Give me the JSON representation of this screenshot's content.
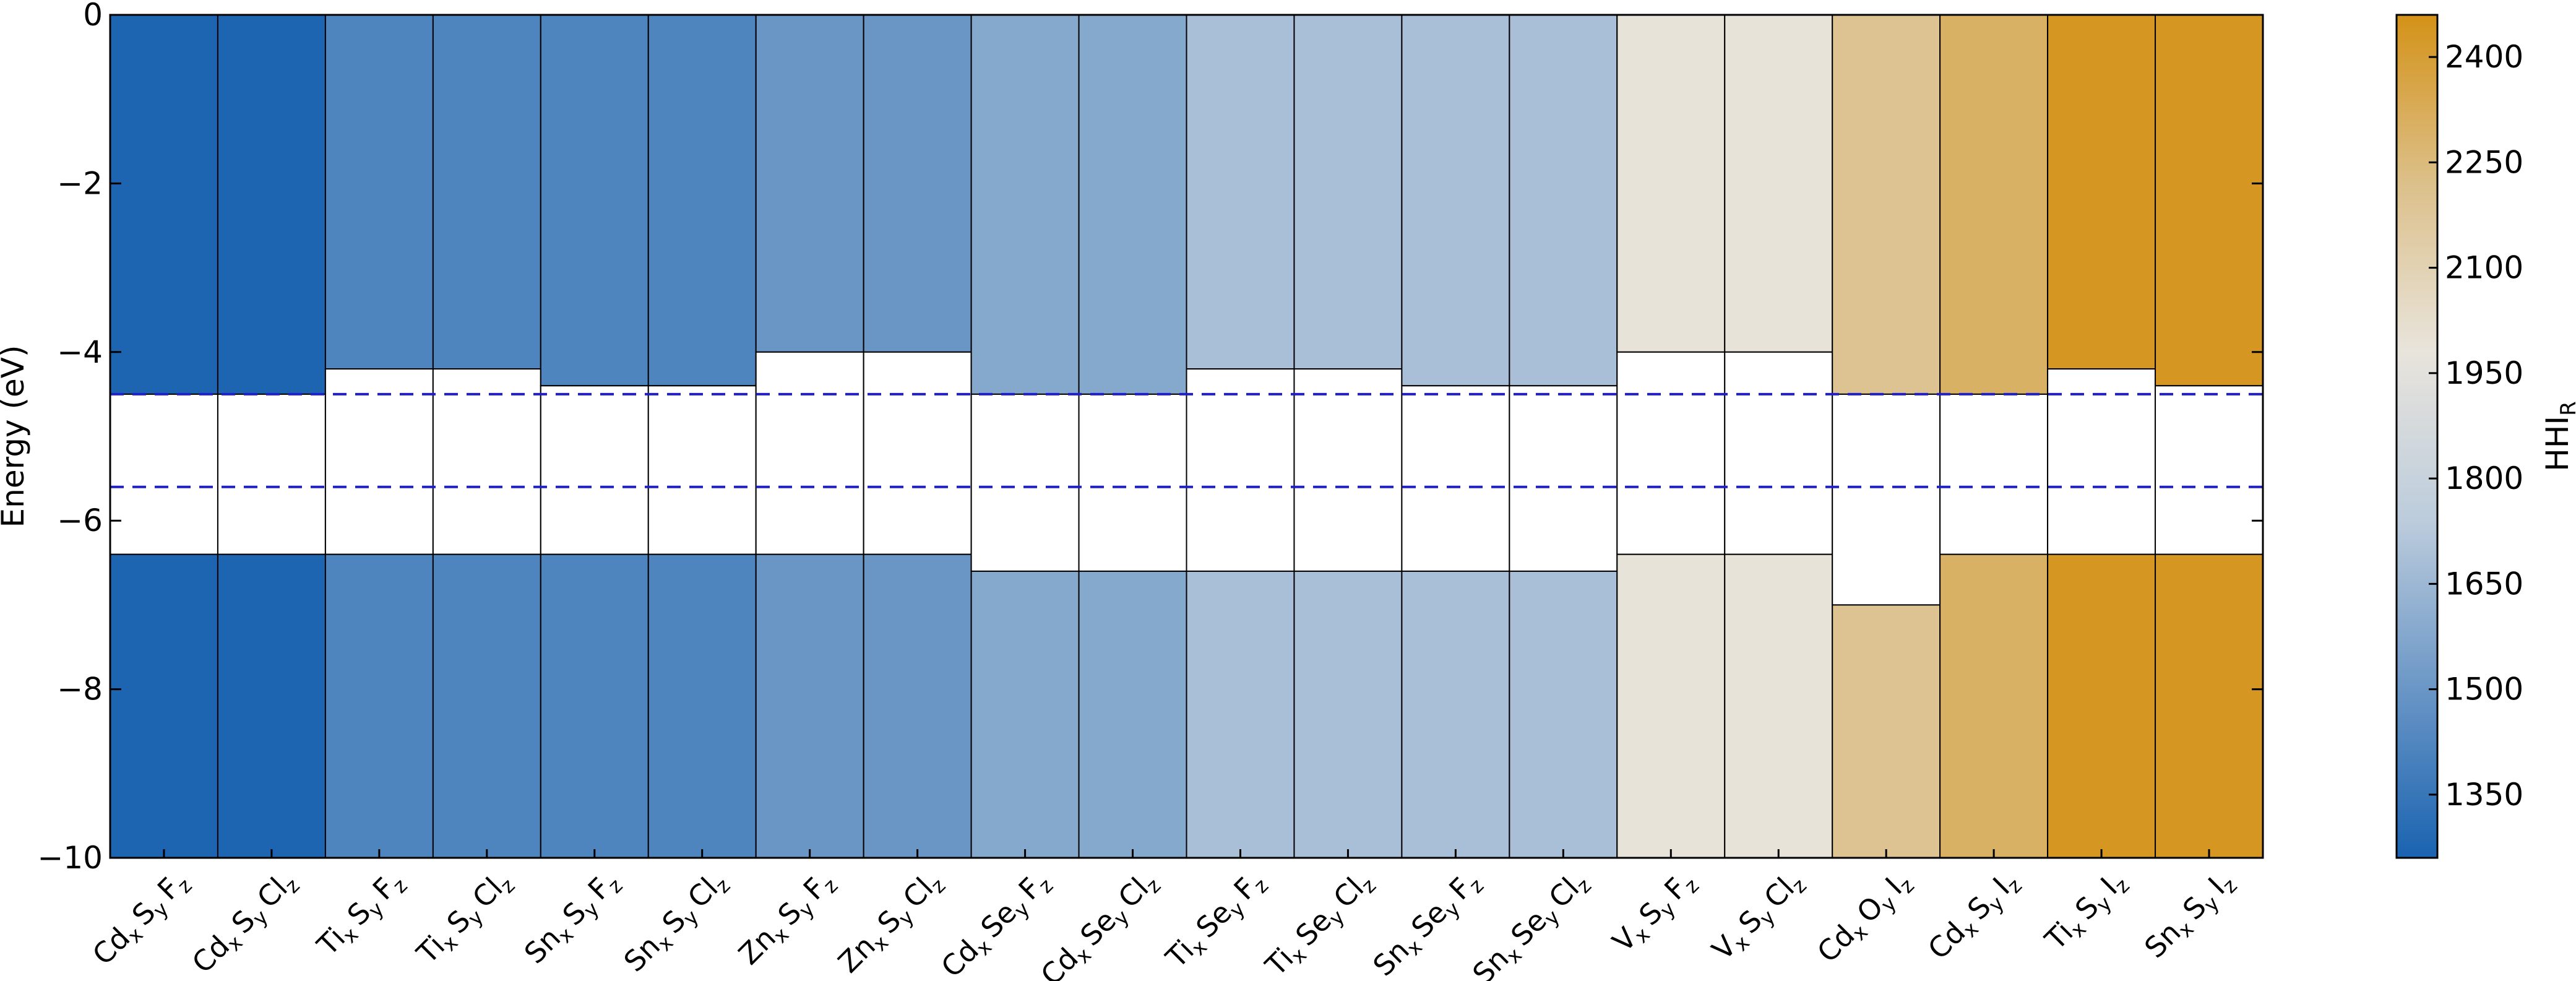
{
  "chart_data": {
    "type": "bar",
    "title": "",
    "xlabel": "",
    "ylabel": "Energy (eV)",
    "ylim": [
      -10,
      0
    ],
    "yticks": [
      0,
      -2,
      -4,
      -6,
      -8,
      -10
    ],
    "ytick_labels": [
      "0",
      "−2",
      "−4",
      "−6",
      "−8",
      "−10"
    ],
    "reference_lines": [
      -4.5,
      -5.6
    ],
    "reference_line_color": "#1f1fcc",
    "colorbar": {
      "label_main": "HHI",
      "label_sub": "R",
      "range": [
        1260,
        2460
      ],
      "ticks": [
        1350,
        1500,
        1650,
        1800,
        1950,
        2100,
        2250,
        2400
      ],
      "colors": [
        "#1a63b0",
        "#6a96c6",
        "#bcccdc",
        "#e8e4dc",
        "#dcc08a",
        "#d49218"
      ]
    },
    "categories": [
      {
        "parts": [
          [
            "Cd",
            "x"
          ],
          [
            "S",
            "y"
          ],
          [
            "F",
            "z"
          ]
        ],
        "cb": -4.5,
        "vb": -6.4,
        "hhi": 1270
      },
      {
        "parts": [
          [
            "Cd",
            "x"
          ],
          [
            "S",
            "y"
          ],
          [
            "Cl",
            "z"
          ]
        ],
        "cb": -4.5,
        "vb": -6.4,
        "hhi": 1270
      },
      {
        "parts": [
          [
            "Ti",
            "x"
          ],
          [
            "S",
            "y"
          ],
          [
            "F",
            "z"
          ]
        ],
        "cb": -4.2,
        "vb": -6.4,
        "hhi": 1420
      },
      {
        "parts": [
          [
            "Ti",
            "x"
          ],
          [
            "S",
            "y"
          ],
          [
            "Cl",
            "z"
          ]
        ],
        "cb": -4.2,
        "vb": -6.4,
        "hhi": 1420
      },
      {
        "parts": [
          [
            "Sn",
            "x"
          ],
          [
            "S",
            "y"
          ],
          [
            "F",
            "z"
          ]
        ],
        "cb": -4.4,
        "vb": -6.4,
        "hhi": 1420
      },
      {
        "parts": [
          [
            "Sn",
            "x"
          ],
          [
            "S",
            "y"
          ],
          [
            "Cl",
            "z"
          ]
        ],
        "cb": -4.4,
        "vb": -6.4,
        "hhi": 1420
      },
      {
        "parts": [
          [
            "Zn",
            "x"
          ],
          [
            "S",
            "y"
          ],
          [
            "F",
            "z"
          ]
        ],
        "cb": -4.0,
        "vb": -6.4,
        "hhi": 1500
      },
      {
        "parts": [
          [
            "Zn",
            "x"
          ],
          [
            "S",
            "y"
          ],
          [
            "Cl",
            "z"
          ]
        ],
        "cb": -4.0,
        "vb": -6.4,
        "hhi": 1500
      },
      {
        "parts": [
          [
            "Cd",
            "x"
          ],
          [
            "Se",
            "y"
          ],
          [
            "F",
            "z"
          ]
        ],
        "cb": -4.5,
        "vb": -6.6,
        "hhi": 1580
      },
      {
        "parts": [
          [
            "Cd",
            "x"
          ],
          [
            "Se",
            "y"
          ],
          [
            "Cl",
            "z"
          ]
        ],
        "cb": -4.5,
        "vb": -6.6,
        "hhi": 1580
      },
      {
        "parts": [
          [
            "Ti",
            "x"
          ],
          [
            "Se",
            "y"
          ],
          [
            "F",
            "z"
          ]
        ],
        "cb": -4.2,
        "vb": -6.6,
        "hhi": 1680
      },
      {
        "parts": [
          [
            "Ti",
            "x"
          ],
          [
            "Se",
            "y"
          ],
          [
            "Cl",
            "z"
          ]
        ],
        "cb": -4.2,
        "vb": -6.6,
        "hhi": 1680
      },
      {
        "parts": [
          [
            "Sn",
            "x"
          ],
          [
            "Se",
            "y"
          ],
          [
            "F",
            "z"
          ]
        ],
        "cb": -4.4,
        "vb": -6.6,
        "hhi": 1680
      },
      {
        "parts": [
          [
            "Sn",
            "x"
          ],
          [
            "Se",
            "y"
          ],
          [
            "Cl",
            "z"
          ]
        ],
        "cb": -4.4,
        "vb": -6.6,
        "hhi": 1680
      },
      {
        "parts": [
          [
            "V",
            "x"
          ],
          [
            "S",
            "y"
          ],
          [
            "F",
            "z"
          ]
        ],
        "cb": -4.0,
        "vb": -6.4,
        "hhi": 1990
      },
      {
        "parts": [
          [
            "V",
            "x"
          ],
          [
            "S",
            "y"
          ],
          [
            "Cl",
            "z"
          ]
        ],
        "cb": -4.0,
        "vb": -6.4,
        "hhi": 1990
      },
      {
        "parts": [
          [
            "Cd",
            "x"
          ],
          [
            "O",
            "y"
          ],
          [
            "I",
            "z"
          ]
        ],
        "cb": -4.5,
        "vb": -7.0,
        "hhi": 2200
      },
      {
        "parts": [
          [
            "Cd",
            "x"
          ],
          [
            "S",
            "y"
          ],
          [
            "I",
            "z"
          ]
        ],
        "cb": -4.5,
        "vb": -6.4,
        "hhi": 2300
      },
      {
        "parts": [
          [
            "Ti",
            "x"
          ],
          [
            "S",
            "y"
          ],
          [
            "I",
            "z"
          ]
        ],
        "cb": -4.2,
        "vb": -6.4,
        "hhi": 2440
      },
      {
        "parts": [
          [
            "Sn",
            "x"
          ],
          [
            "S",
            "y"
          ],
          [
            "I",
            "z"
          ]
        ],
        "cb": -4.4,
        "vb": -6.4,
        "hhi": 2440
      }
    ]
  }
}
